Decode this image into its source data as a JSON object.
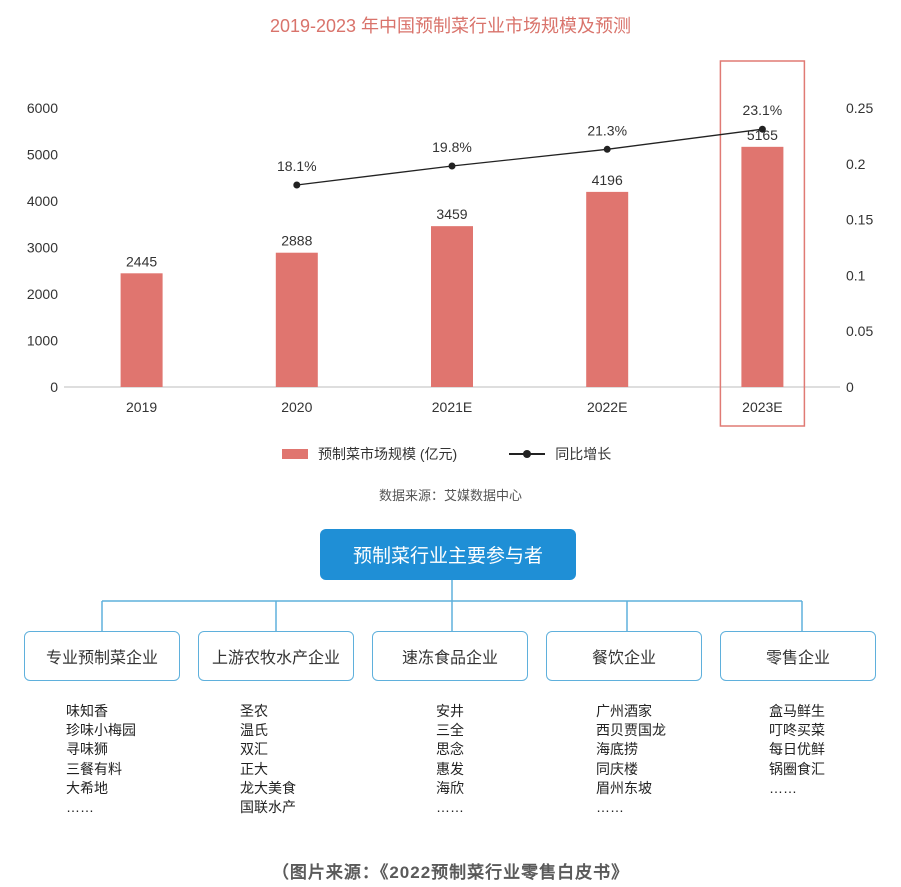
{
  "chart_data": {
    "type": "bar",
    "title": "2019-2023 年中国预制菜行业市场规模及预测",
    "categories": [
      "2019",
      "2020",
      "2021E",
      "2022E",
      "2023E"
    ],
    "series": [
      {
        "name": "预制菜市场规模 (亿元)",
        "type": "bar",
        "axis": "left",
        "values": [
          2445,
          2888,
          3459,
          4196,
          5165
        ]
      },
      {
        "name": "同比增长",
        "type": "line",
        "axis": "right",
        "values": [
          null,
          0.181,
          0.198,
          0.213,
          0.231
        ],
        "labels": [
          "",
          "18.1%",
          "19.8%",
          "21.3%",
          "23.1%"
        ]
      }
    ],
    "ylim_left": [
      0,
      6000
    ],
    "ylim_right": [
      0,
      0.25
    ],
    "yticks_left": [
      "0",
      "1000",
      "2000",
      "3000",
      "4000",
      "5000",
      "6000"
    ],
    "yticks_right": [
      "0",
      "0.05",
      "0.1",
      "0.15",
      "0.2",
      "0.25"
    ],
    "highlighted_category": "2023E",
    "colors": {
      "bar": "#e0756f",
      "line": "#222222",
      "highlight": "#e07a74",
      "title": "#d9736b"
    },
    "source": "数据来源：艾媒数据中心"
  },
  "tree": {
    "root": "预制菜行业主要参与者",
    "categories": [
      {
        "label": "专业预制菜企业",
        "companies": [
          "味知香",
          "珍味小梅园",
          "寻味狮",
          "三餐有料",
          "大希地",
          "……"
        ]
      },
      {
        "label": "上游农牧水产企业",
        "companies": [
          "圣农",
          "温氏",
          "双汇",
          "正大",
          "龙大美食",
          "国联水产"
        ]
      },
      {
        "label": "速冻食品企业",
        "companies": [
          "安井",
          "三全",
          "思念",
          "惠发",
          "海欣",
          "……"
        ]
      },
      {
        "label": "餐饮企业",
        "companies": [
          "广州酒家",
          "西贝贾国龙",
          "海底捞",
          "同庆楼",
          "眉州东坡",
          "……"
        ]
      },
      {
        "label": "零售企业",
        "companies": [
          "盒马鲜生",
          "叮咚买菜",
          "每日优鲜",
          "锅圈食汇",
          "……"
        ]
      }
    ],
    "colors": {
      "root_bg": "#1f8fd6",
      "border": "#5fb0dc"
    }
  },
  "footer": {
    "source": "（图片来源：《2022预制菜行业零售白皮书》"
  }
}
